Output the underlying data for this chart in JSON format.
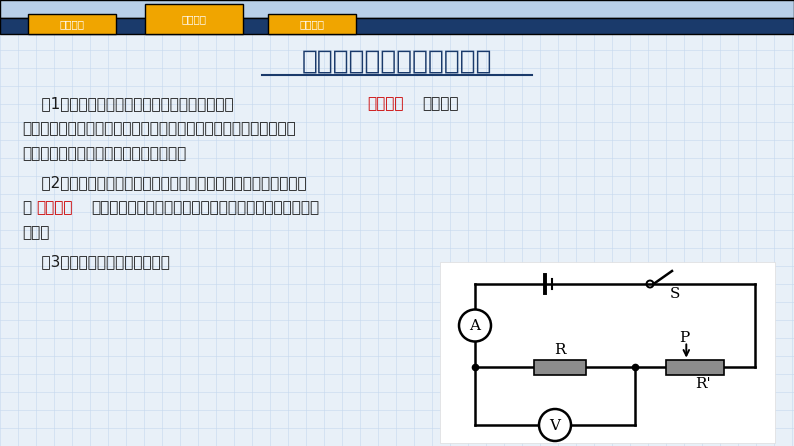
{
  "main_bg": "#e8f0f8",
  "header_bar_color": "#1a3a6b",
  "tab1_text": "情境导入",
  "tab2_text": "新课探究",
  "tab3_text": "课堂小结",
  "tab_orange": "#f0a500",
  "title": "电流的大小与哪些因素有关",
  "title_color": "#1a3a6b",
  "text_color": "#1a1a1a",
  "red_color": "#cc0000",
  "grid_color": "#c5d8ee",
  "resistor_color": "#8c8c8c",
  "line1a": "    （1）研究电流跟电压的关系时，保持电路中的",
  "line1b": "电阻不变",
  "line1c": "，通过调",
  "line2": "节滑动变阻器接入电路中的阻值大小来改变电阻两端的电压，研究通",
  "line3": "过电阻的电流随它两端电压变化的关系。",
  "line4": "    （2）研究电流跟电阻的关系时，通过调节滑动变阻器使电阻两端",
  "line5a": "的",
  "line5b": "电压不变",
  "line5c": "，分别换用不同阻值的电阻接入电路，研究电流与电阻的",
  "line6": "关系。",
  "line7": "    （3）设计如图所示的电路图。"
}
